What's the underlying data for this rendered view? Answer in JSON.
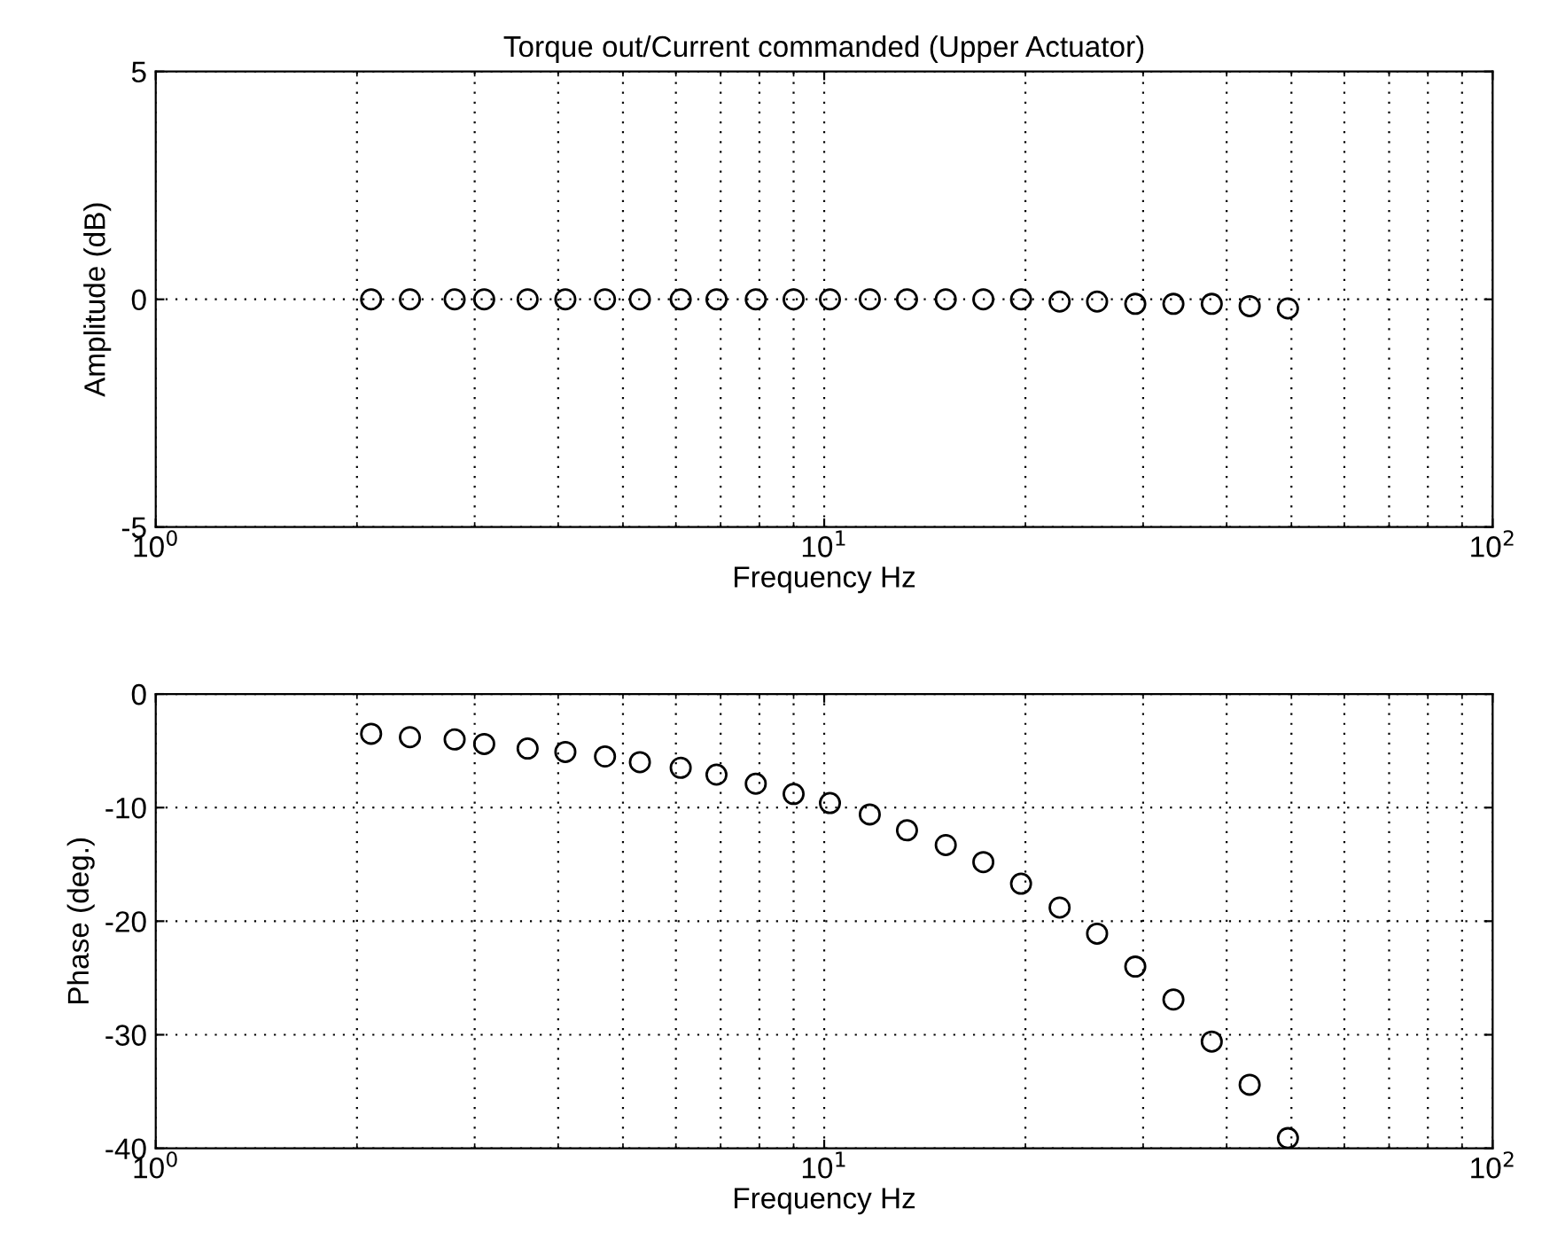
{
  "chart_data": [
    {
      "type": "scatter",
      "title": "Torque out/Current commanded (Upper Actuator)",
      "xlabel": "Frequency Hz",
      "ylabel": "Amplitude (dB)",
      "log": "x",
      "grid": true,
      "marker": "circle",
      "xlim": [
        1,
        100
      ],
      "xticks": [
        {
          "value": 1,
          "label": "10$^{0}$"
        },
        {
          "value": 10,
          "label": "10$^{1}$"
        },
        {
          "value": 100,
          "label": "10$^{2}$"
        }
      ],
      "ylim": [
        -5,
        5
      ],
      "yticks": [
        -5,
        0,
        5
      ],
      "x": [
        2.1,
        2.4,
        2.8,
        3.1,
        3.6,
        4.1,
        4.7,
        5.3,
        6.1,
        6.9,
        7.9,
        9.0,
        10.2,
        11.7,
        13.3,
        15.2,
        17.3,
        19.7,
        22.5,
        25.6,
        29.2,
        33.3,
        38,
        43.3,
        49.4
      ],
      "series": [
        {
          "color": "#000000",
          "values": [
            0,
            0,
            0,
            0,
            0,
            0,
            0,
            0,
            0,
            0,
            0,
            0,
            0,
            0,
            0,
            0,
            0,
            0,
            -0.05,
            -0.05,
            -0.1,
            -0.1,
            -0.1,
            -0.15,
            -0.2
          ]
        }
      ]
    },
    {
      "type": "scatter",
      "xlabel": "Frequency Hz",
      "ylabel": "Phase (deg.)",
      "log": "x",
      "grid": true,
      "marker": "circle",
      "xlim": [
        1,
        100
      ],
      "xticks": [
        {
          "value": 1,
          "label": "10$^{0}$"
        },
        {
          "value": 10,
          "label": "10$^{1}$"
        },
        {
          "value": 100,
          "label": "10$^{2}$"
        }
      ],
      "ylim": [
        -40,
        0
      ],
      "yticks": [
        -40,
        -30,
        -20,
        -10,
        0
      ],
      "x": [
        2.1,
        2.4,
        2.8,
        3.1,
        3.6,
        4.1,
        4.7,
        5.3,
        6.1,
        6.9,
        7.9,
        9.0,
        10.2,
        11.7,
        13.3,
        15.2,
        17.3,
        19.7,
        22.5,
        25.6,
        29.2,
        33.3,
        38,
        43.3,
        49.4
      ],
      "series": [
        {
          "color": "#000000",
          "values": [
            -3.5,
            -3.8,
            -4.0,
            -4.4,
            -4.8,
            -5.1,
            -5.5,
            -6.0,
            -6.5,
            -7.1,
            -7.9,
            -8.8,
            -9.6,
            -10.6,
            -12.0,
            -13.3,
            -14.8,
            -16.7,
            -18.8,
            -21.1,
            -24.0,
            -26.9,
            -30.6,
            -34.4,
            -39.1
          ]
        }
      ]
    }
  ]
}
